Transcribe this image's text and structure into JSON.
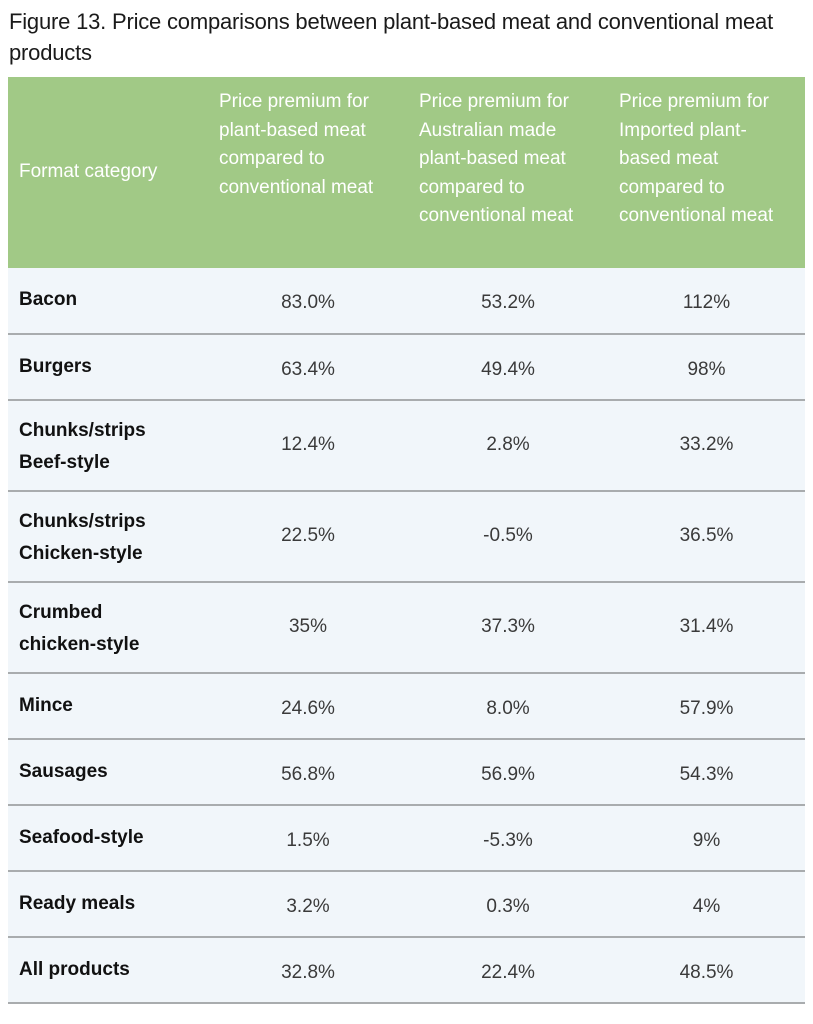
{
  "title": "Figure 13. Price comparisons between plant-based meat and conventional meat products",
  "table": {
    "header_color": "#a1c986",
    "row_color": "#f1f6fa",
    "headers": [
      "Format category",
      "Price premium for plant-based meat compared to conventional meat",
      "Price premium for Australian made plant-based meat compared to conventional meat",
      "Price premium for Imported plant-based meat compared to conventional meat"
    ],
    "rows": [
      {
        "category": "Bacon",
        "all": "83.0%",
        "australian": "53.2%",
        "imported": "112%"
      },
      {
        "category": "Burgers",
        "all": "63.4%",
        "australian": "49.4%",
        "imported": "98%"
      },
      {
        "category": "Chunks/strips Beef-style",
        "all": "12.4%",
        "australian": "2.8%",
        "imported": "33.2%"
      },
      {
        "category": "Chunks/strips Chicken-style",
        "all": "22.5%",
        "australian": "-0.5%",
        "imported": "36.5%"
      },
      {
        "category": "Crumbed chicken-style",
        "all": "35%",
        "australian": "37.3%",
        "imported": "31.4%"
      },
      {
        "category": "Mince",
        "all": "24.6%",
        "australian": "8.0%",
        "imported": "57.9%"
      },
      {
        "category": "Sausages",
        "all": "56.8%",
        "australian": "56.9%",
        "imported": "54.3%"
      },
      {
        "category": "Seafood-style",
        "all": "1.5%",
        "australian": "-5.3%",
        "imported": "9%"
      },
      {
        "category": "Ready meals",
        "all": "3.2%",
        "australian": "0.3%",
        "imported": "4%"
      },
      {
        "category": "All products",
        "all": "32.8%",
        "australian": "22.4%",
        "imported": "48.5%"
      }
    ]
  }
}
